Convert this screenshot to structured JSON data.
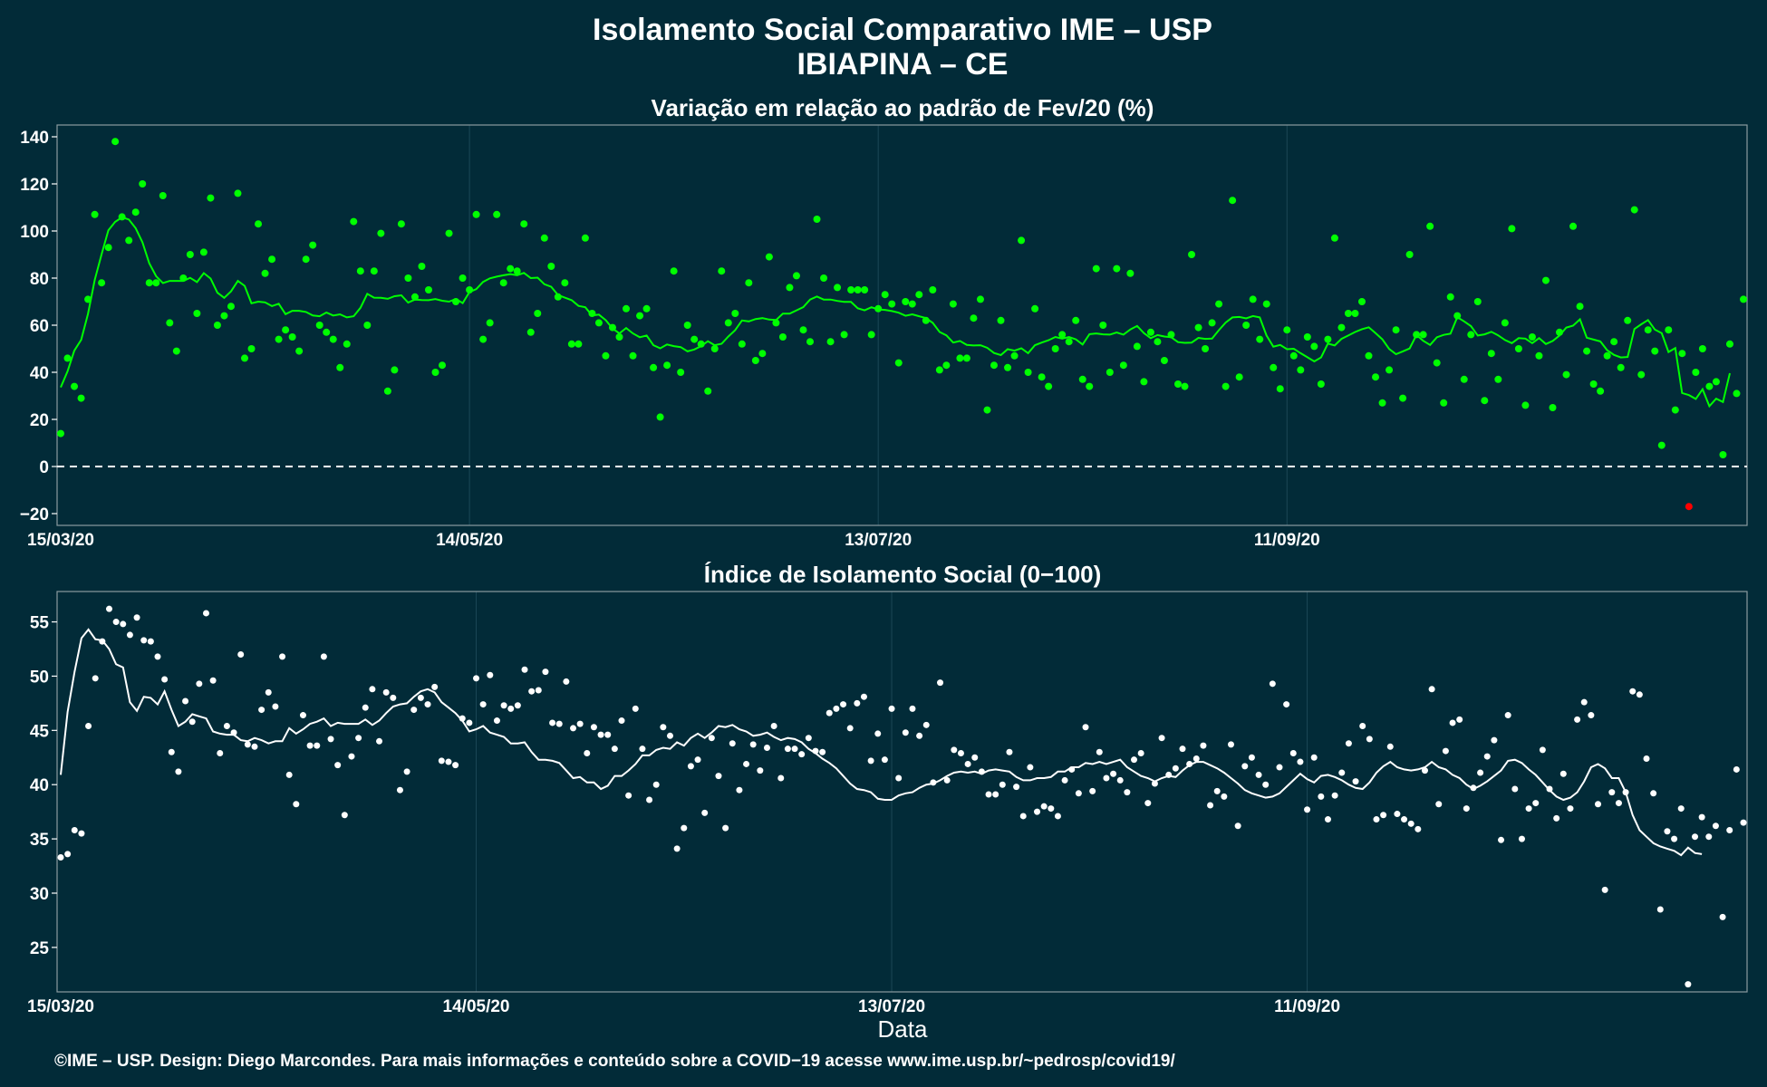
{
  "title": "Isolamento Social Comparativo IME – USP",
  "location": "IBIAPINA – CE",
  "caption": "©IME – USP. Design: Diego Marcondes. Para mais informações e conteúdo sobre a COVID−19 acesse www.ime.usp.br/~pedrosp/covid19/",
  "colors": {
    "background": "#022b38",
    "variation": "#00ff00",
    "negative": "#ff0000",
    "index": "#ffffff",
    "grid": "#1b4756"
  },
  "chart_data": [
    {
      "type": "scatter",
      "title": "Variação em relação ao padrão de Fev/20 (%)",
      "xlabel": "",
      "ylabel": "",
      "x_ticks": [
        "15/03/20",
        "14/05/20",
        "13/07/20",
        "11/09/20"
      ],
      "y_ticks": [
        140,
        120,
        100,
        80,
        60,
        40,
        20,
        0,
        -20
      ],
      "ylim": [
        -25,
        145
      ],
      "grid": true,
      "reference_line": 0,
      "series": [
        {
          "kind": "points",
          "values": [
            14,
            46,
            34,
            29,
            71,
            107,
            78,
            93,
            138,
            106,
            96,
            108,
            120,
            78,
            78,
            115,
            61,
            49,
            80,
            90,
            65,
            91,
            114,
            60,
            64,
            68,
            116,
            46,
            50,
            103,
            82,
            88,
            54,
            58,
            55,
            49,
            88,
            94,
            60,
            57,
            54,
            42,
            52,
            104,
            83,
            60,
            83,
            99,
            32,
            41,
            103,
            80,
            72,
            85,
            75,
            40,
            43,
            99,
            70,
            80,
            75,
            107,
            54,
            61,
            107,
            78,
            84,
            83,
            103,
            57,
            65,
            97,
            85,
            72,
            78,
            52,
            52,
            97,
            65,
            61,
            47,
            59,
            55,
            67,
            47,
            64,
            67,
            42,
            21,
            43,
            83,
            40,
            60,
            54,
            52,
            32,
            50,
            83,
            61,
            65,
            52,
            78,
            45,
            48,
            89,
            61,
            55,
            76,
            81,
            58,
            53,
            105,
            80,
            53,
            76,
            56,
            75,
            75,
            75,
            56,
            67,
            73,
            69,
            44,
            70,
            69,
            73,
            62,
            75,
            41,
            43,
            69,
            46,
            46,
            63,
            71,
            24,
            43,
            62,
            42,
            47,
            96,
            40,
            67,
            38,
            34,
            50,
            56,
            53,
            62,
            37,
            34,
            84,
            60,
            40,
            84,
            43,
            82,
            51,
            36,
            57,
            53,
            45,
            56,
            35,
            34,
            90,
            59,
            50,
            61,
            69,
            34,
            113,
            38,
            60,
            71,
            54,
            69,
            42,
            33,
            58,
            47,
            41,
            55,
            51,
            35,
            54,
            97,
            59,
            65,
            65,
            70,
            47,
            38,
            27,
            41,
            58,
            29,
            90,
            56,
            56,
            102,
            44,
            27,
            72,
            64,
            37,
            56,
            70,
            28,
            48,
            37,
            61,
            101,
            50,
            26,
            55,
            47,
            79,
            25,
            57,
            39,
            102,
            68,
            49,
            35,
            32,
            47,
            53,
            42,
            62,
            109,
            39,
            58,
            49,
            9,
            58,
            24,
            48,
            -17,
            40,
            50,
            34,
            36,
            5,
            52,
            31,
            71
          ],
          "negative_marked": true
        },
        {
          "kind": "moving_average",
          "values": [
            33.6,
            40.4,
            49.2,
            53.8,
            64.8,
            79.3,
            90.1,
            100.3,
            103.9,
            105.8,
            104.9,
            101.2,
            95.2,
            86.3,
            80.8,
            77.9,
            78.8,
            78.8,
            78.8,
            80.1,
            78.3,
            82.1,
            79.8,
            73.8,
            71.6,
            74.4,
            78.8,
            76.7,
            69.3,
            70.0,
            69.7,
            68.1,
            69.1,
            64.7,
            66.1,
            66.1,
            65.6,
            64.1,
            63.8,
            65.4,
            64.1,
            64.6,
            63.3,
            63.8,
            67.4,
            73.3,
            71.7,
            71.6,
            71.2,
            72.3,
            72.7,
            69.6,
            70.9,
            70.7,
            70.6,
            71.1,
            70.4,
            70.0,
            71.1,
            69.4,
            74.1,
            75.3,
            78.4,
            79.9,
            80.6,
            81.2,
            81.7,
            81.2,
            82.2,
            80.0,
            80.2,
            77.4,
            76.3,
            72.8,
            71.7,
            70.6,
            68.2,
            67.6,
            64.1,
            64.5,
            62.1,
            58.6,
            56.5,
            58.8,
            56.5,
            54.9,
            55.6,
            51.5,
            50.2,
            51.8,
            51.1,
            50.7,
            48.9,
            49.7,
            51.1,
            53.2,
            51.5,
            52.1,
            55.2,
            57.9,
            62.0,
            61.6,
            62.6,
            63.0,
            62.4,
            62.2,
            64.9,
            64.9,
            66.3,
            67.7,
            70.9,
            72.2,
            70.9,
            70.9,
            70.3,
            69.9,
            69.9,
            67.2,
            66.3,
            67.6,
            66.7,
            66.5,
            66.0,
            65.3,
            64.0,
            64.6,
            63.8,
            63.0,
            61.0,
            57.1,
            55.7,
            52.6,
            53.3,
            51.6,
            51.4,
            51.5,
            50.4,
            48.2,
            47.3,
            49.8,
            49.2,
            50.2,
            48.1,
            51.5,
            52.6,
            53.6,
            55.0,
            54.3,
            55.0,
            54.0,
            51.8,
            56.2,
            56.5,
            56.1,
            56.0,
            56.9,
            56.0,
            58.2,
            59.7,
            56.6,
            54.5,
            55.8,
            55.2,
            54.9,
            52.8,
            52.5,
            52.6,
            54.6,
            54.2,
            54.3,
            57.9,
            61.1,
            63.3,
            63.5,
            62.9,
            63.9,
            63.3,
            55.6,
            50.9,
            51.6,
            49.8,
            50.0,
            48.1,
            46.4,
            44.6,
            46.3,
            52.2,
            51.4,
            54.2,
            55.6,
            57.1,
            58.3,
            59.1,
            56.6,
            54.0,
            49.9,
            47.7,
            48.9,
            50.1,
            55.8,
            53.4,
            51.6,
            54.9,
            55.9,
            56.4,
            63.4,
            61.6,
            59.6,
            55.6,
            56.1,
            57.2,
            55.7,
            53.7,
            52.4,
            54.5,
            54.3,
            52.4,
            54.5,
            52.0,
            53.3,
            55.6,
            59.0,
            59.8,
            62.5,
            54.7,
            53.9,
            53.1,
            49.4,
            47.4,
            46.3,
            46.5,
            58.4,
            60.4,
            62.2,
            58.1,
            56.6,
            48.6,
            50.3,
            31.2,
            30.3,
            28.7,
            32.8,
            25.6,
            28.8,
            27.4,
            39.6
          ]
        }
      ]
    },
    {
      "type": "scatter",
      "title": "Índice de Isolamento Social (0−100)",
      "xlabel": "Data",
      "ylabel": "",
      "x_ticks": [
        "15/03/20",
        "14/05/20",
        "13/07/20",
        "11/09/20"
      ],
      "y_ticks": [
        55,
        50,
        45,
        40,
        35,
        30,
        25
      ],
      "ylim": [
        20.9,
        57.8
      ],
      "grid": true,
      "series": [
        {
          "kind": "points",
          "values": [
            33.3,
            33.6,
            35.8,
            35.5,
            45.4,
            49.8,
            53.2,
            56.2,
            55.0,
            54.8,
            53.8,
            55.4,
            53.3,
            53.2,
            51.8,
            49.7,
            43.0,
            41.2,
            47.7,
            45.8,
            49.3,
            55.8,
            49.6,
            42.9,
            45.4,
            44.8,
            52.0,
            43.7,
            43.5,
            46.9,
            48.5,
            47.2,
            51.8,
            40.9,
            38.2,
            46.4,
            43.6,
            43.6,
            51.8,
            44.2,
            41.8,
            37.2,
            42.6,
            44.3,
            47.1,
            48.8,
            44.0,
            48.5,
            48.0,
            39.5,
            41.2,
            46.9,
            48.0,
            47.4,
            49.0,
            42.2,
            42.1,
            41.8,
            46.1,
            45.7,
            49.8,
            47.4,
            50.1,
            45.9,
            47.3,
            47.0,
            47.3,
            50.6,
            48.6,
            48.7,
            50.4,
            45.7,
            45.6,
            49.5,
            45.2,
            45.6,
            42.9,
            45.3,
            44.6,
            44.6,
            43.3,
            45.9,
            39.0,
            47.0,
            43.3,
            38.6,
            40.0,
            45.3,
            44.5,
            34.1,
            36.0,
            41.7,
            42.3,
            37.4,
            44.3,
            40.8,
            36.0,
            43.8,
            39.5,
            41.9,
            43.7,
            41.3,
            43.4,
            45.4,
            40.6,
            43.3,
            43.3,
            42.8,
            44.3,
            43.1,
            43.0,
            46.6,
            47.0,
            47.4,
            45.2,
            47.5,
            48.1,
            42.2,
            44.7,
            42.3,
            47.0,
            40.6,
            44.8,
            47.0,
            44.5,
            45.5,
            40.2,
            49.4,
            40.4,
            43.2,
            42.9,
            41.9,
            42.5,
            41.2,
            39.1,
            39.1,
            40.0,
            43.0,
            39.8,
            37.1,
            41.6,
            37.5,
            38.0,
            37.8,
            37.1,
            40.4,
            41.4,
            39.2,
            45.3,
            39.4,
            43.0,
            40.6,
            41.0,
            40.4,
            39.3,
            42.3,
            42.9,
            38.3,
            40.1,
            44.3,
            40.9,
            41.5,
            43.3,
            41.9,
            42.4,
            43.6,
            38.1,
            39.4,
            38.9,
            43.7,
            36.2,
            41.7,
            42.5,
            40.9,
            40.0,
            49.3,
            41.6,
            47.4,
            42.9,
            42.1,
            37.7,
            42.5,
            38.9,
            36.8,
            39.0,
            41.1,
            43.8,
            40.3,
            45.4,
            44.2,
            36.8,
            37.2,
            43.5,
            37.3,
            36.8,
            36.4,
            35.9,
            41.3,
            48.8,
            38.2,
            43.1,
            45.7,
            46.0,
            37.8,
            39.7,
            41.1,
            42.6,
            44.1,
            34.9,
            46.4,
            39.6,
            35.0,
            37.8,
            38.3,
            43.2,
            39.6,
            36.9,
            41.0,
            37.8,
            46.0,
            47.6,
            46.4,
            38.2,
            30.3,
            39.3,
            38.3,
            39.3,
            48.6,
            48.3,
            42.4,
            39.2,
            28.5,
            35.7,
            35.0,
            37.8,
            21.6,
            35.2,
            37.0,
            35.2,
            36.2,
            27.8,
            35.8,
            41.4,
            36.5
          ]
        },
        {
          "kind": "moving_average",
          "values": [
            40.9,
            46.7,
            50.4,
            53.5,
            54.3,
            53.4,
            53.3,
            52.5,
            51.1,
            50.8,
            47.6,
            46.8,
            48.1,
            48.0,
            47.4,
            48.6,
            46.9,
            45.4,
            45.8,
            46.5,
            46.3,
            46.1,
            44.9,
            44.7,
            44.6,
            44.6,
            44.1,
            44.0,
            44.3,
            44.1,
            43.8,
            44.0,
            44.0,
            45.2,
            44.7,
            45.1,
            45.6,
            45.8,
            46.1,
            45.4,
            45.7,
            45.6,
            45.6,
            45.6,
            46.0,
            45.5,
            45.9,
            46.6,
            47.2,
            47.4,
            47.5,
            48.1,
            48.6,
            48.8,
            48.5,
            47.6,
            47.1,
            46.6,
            45.9,
            44.9,
            45.1,
            45.4,
            44.8,
            44.6,
            44.4,
            43.8,
            43.8,
            43.9,
            43.0,
            42.3,
            42.3,
            42.2,
            42.0,
            41.3,
            40.6,
            40.7,
            40.2,
            40.2,
            39.6,
            39.9,
            40.8,
            40.8,
            41.3,
            41.9,
            42.7,
            42.7,
            43.2,
            43.4,
            43.3,
            43.9,
            43.6,
            44.3,
            44.7,
            44.3,
            44.8,
            45.4,
            45.3,
            45.5,
            45.1,
            44.9,
            44.5,
            44.6,
            44.8,
            44.4,
            44.1,
            44.3,
            44.2,
            43.9,
            43.3,
            42.9,
            42.4,
            42.0,
            41.5,
            40.8,
            40.1,
            39.6,
            39.5,
            39.3,
            38.7,
            38.6,
            38.6,
            39.0,
            39.2,
            39.3,
            39.7,
            40.0,
            40.1,
            40.4,
            40.8,
            41.1,
            41.2,
            41.1,
            41.2,
            41.0,
            41.3,
            41.4,
            41.3,
            41.2,
            40.7,
            40.4,
            40.4,
            40.6,
            40.6,
            40.7,
            41.2,
            41.2,
            41.6,
            41.6,
            42.0,
            41.9,
            42.1,
            41.9,
            42.1,
            42.3,
            41.6,
            41.2,
            40.8,
            40.6,
            40.3,
            40.6,
            40.8,
            40.7,
            41.3,
            41.8,
            42.1,
            42.1,
            41.8,
            41.5,
            41.1,
            40.6,
            40.1,
            39.5,
            39.2,
            39.0,
            38.8,
            38.9,
            39.2,
            39.8,
            40.4,
            41.0,
            40.5,
            40.2,
            40.8,
            40.9,
            40.7,
            40.4,
            40.0,
            39.7,
            39.6,
            40.2,
            41.1,
            41.7,
            42.1,
            41.6,
            41.4,
            41.3,
            41.4,
            41.6,
            42.1,
            41.6,
            41.4,
            40.9,
            40.6,
            40.0,
            39.6,
            39.9,
            40.3,
            40.8,
            41.3,
            42.2,
            42.3,
            42.0,
            41.4,
            40.9,
            40.2,
            39.5,
            38.9,
            38.6,
            38.8,
            39.3,
            40.3,
            41.6,
            41.9,
            41.5,
            40.6,
            40.6,
            39.3,
            37.2,
            35.8,
            35.2,
            34.6,
            34.3,
            34.1,
            33.9,
            33.5,
            34.2,
            33.7,
            33.6
          ]
        }
      ]
    }
  ]
}
